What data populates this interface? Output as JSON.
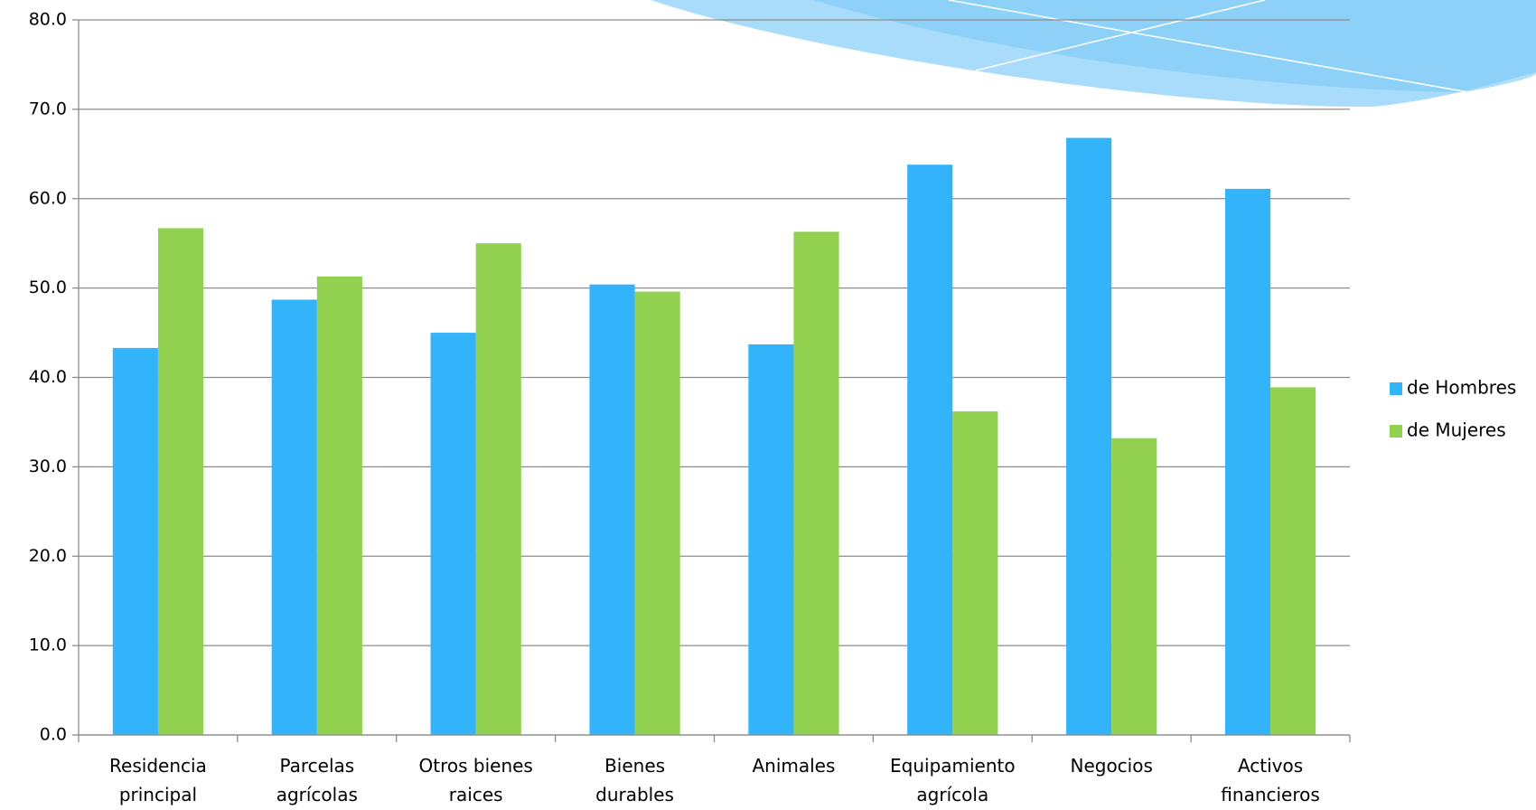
{
  "chart_data": {
    "type": "bar",
    "categories": [
      "Residencia principal",
      "Parcelas agrícolas",
      "Otros bienes raices",
      "Bienes durables",
      "Animales",
      "Equipamiento agrícola",
      "Negocios",
      "Activos financieros"
    ],
    "series": [
      {
        "name": "de Hombres",
        "color": "#33b3fa",
        "values": [
          43.3,
          48.7,
          45.0,
          50.4,
          43.7,
          63.8,
          66.8,
          61.1
        ]
      },
      {
        "name": "de Mujeres",
        "color": "#92d050",
        "values": [
          56.7,
          51.3,
          55.0,
          49.6,
          56.3,
          36.2,
          33.2,
          38.9
        ]
      }
    ],
    "ylim": [
      0,
      80
    ],
    "yticks": [
      {
        "value": 0,
        "label": "0.0"
      },
      {
        "value": 10,
        "label": "10.0"
      },
      {
        "value": 20,
        "label": "20.0"
      },
      {
        "value": 30,
        "label": "30.0"
      },
      {
        "value": 40,
        "label": "40.0"
      },
      {
        "value": 50,
        "label": "50.0"
      },
      {
        "value": 60,
        "label": "60.0"
      },
      {
        "value": 70,
        "label": "70.0"
      },
      {
        "value": 80,
        "label": "80.0"
      }
    ],
    "grid": true,
    "legend": "right"
  }
}
